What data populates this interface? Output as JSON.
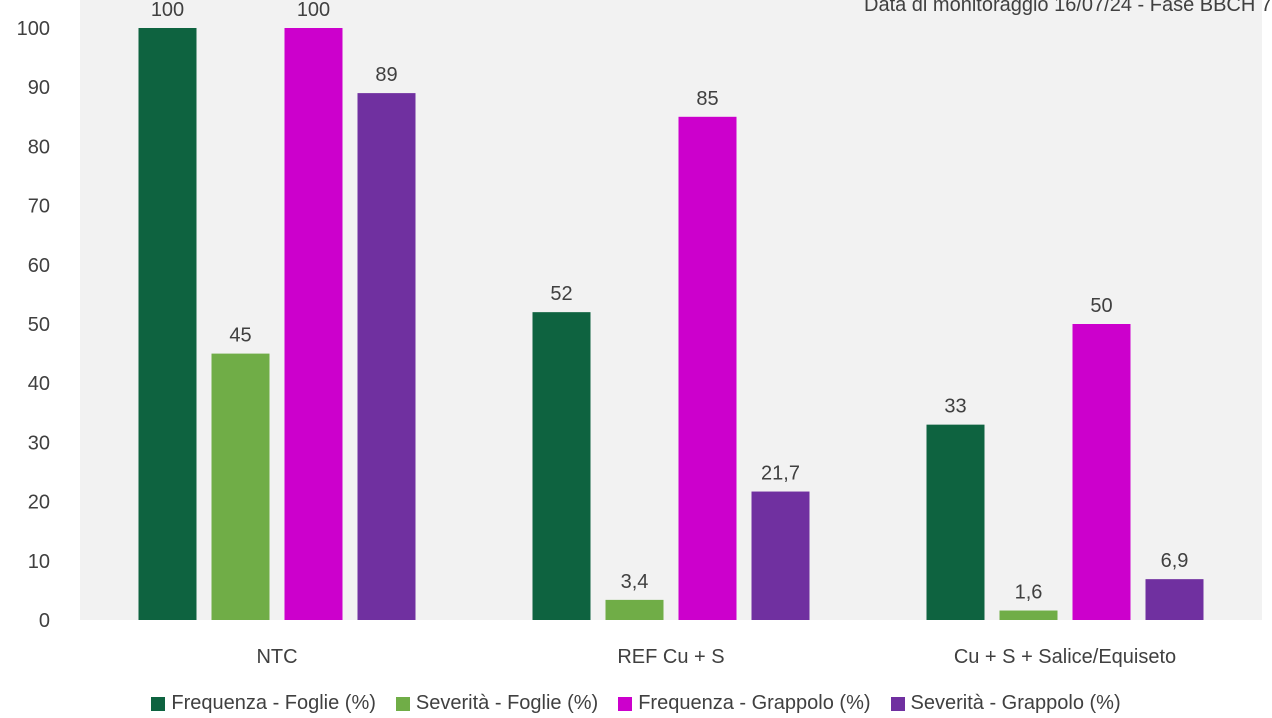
{
  "chart_data": {
    "type": "bar",
    "title": "",
    "subtitle": "Data di monitoraggio 16/07/24 - Fase BBCH 7",
    "xlabel": "",
    "ylabel": "",
    "ylim": [
      0,
      100
    ],
    "yticks": [
      "0",
      "10",
      "20",
      "30",
      "40",
      "50",
      "60",
      "70",
      "80",
      "90",
      "100"
    ],
    "grid": false,
    "legend_position": "bottom",
    "categories": [
      "NTC",
      "REF Cu + S",
      "Cu + S + Salice/Equiseto"
    ],
    "series": [
      {
        "name": "Frequenza - Foglie (%)",
        "color": "#0e6340",
        "values": [
          100,
          52,
          33
        ],
        "labels": [
          "100",
          "52",
          "33"
        ]
      },
      {
        "name": "Severità - Foglie (%)",
        "color": "#70ad47",
        "values": [
          45,
          3.4,
          1.6
        ],
        "labels": [
          "45",
          "3,4",
          "1,6"
        ]
      },
      {
        "name": "Frequenza - Grappolo (%)",
        "color": "#cc00cc",
        "values": [
          100,
          85,
          50
        ],
        "labels": [
          "100",
          "85",
          "50"
        ]
      },
      {
        "name": "Severità - Grappolo (%)",
        "color": "#7030a0",
        "values": [
          89,
          21.7,
          6.9
        ],
        "labels": [
          "89",
          "21,7",
          "6,9"
        ]
      }
    ]
  }
}
